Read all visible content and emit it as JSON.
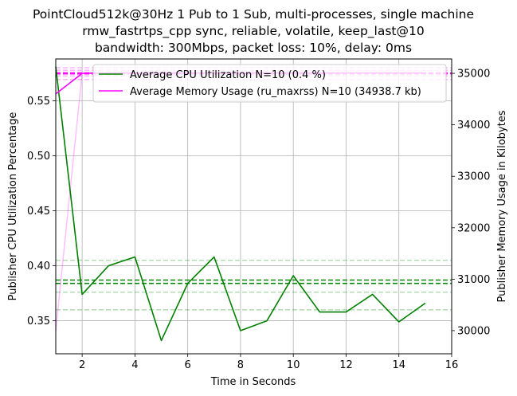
{
  "chart_data": {
    "type": "line",
    "title_lines": [
      "PointCloud512k@30Hz 1 Pub to 1 Sub, multi-processes, single machine",
      "rmw_fastrtps_cpp sync, reliable, volatile, keep_last@10",
      "bandwidth: 300Mbps, packet loss: 10%, delay: 0ms"
    ],
    "xlabel": "Time in Seconds",
    "ylabel_left": "Publisher CPU Utilization Percentage",
    "ylabel_right": "Publisher Memory Usage in Kilobytes",
    "xlim": [
      1,
      16
    ],
    "ylim_left": [
      0.32,
      0.588
    ],
    "ylim_right": [
      29550,
      35280
    ],
    "x_ticks": [
      2,
      4,
      6,
      8,
      10,
      12,
      14,
      16
    ],
    "y_ticks_left": [
      0.35,
      0.4,
      0.45,
      0.5,
      0.55
    ],
    "y_ticks_right": [
      30000,
      31000,
      32000,
      33000,
      34000,
      35000
    ],
    "grid": true,
    "legend_position": "top-right",
    "series": [
      {
        "name": "Average CPU Utilization N=10 (0.4 %)",
        "axis": "left",
        "color": "#008000",
        "x": [
          1,
          2,
          3,
          4,
          5,
          6,
          7,
          8,
          9,
          10,
          11,
          12,
          13,
          14,
          15
        ],
        "y": [
          0.581,
          0.374,
          0.4,
          0.408,
          0.332,
          0.384,
          0.408,
          0.341,
          0.35,
          0.391,
          0.358,
          0.358,
          0.374,
          0.349,
          0.366
        ],
        "ref_lines": [
          0.387,
          0.384
        ],
        "band_lines": [
          0.405,
          0.376,
          0.36
        ]
      },
      {
        "name": "Average Memory Usage (ru_maxrss) N=10 (34938.7 kb)",
        "axis": "right",
        "color": "#ff00ff",
        "x": [
          1,
          2,
          3,
          4,
          5,
          6,
          7,
          8,
          9,
          10,
          11,
          12,
          13,
          14,
          15
        ],
        "y": [
          34600,
          35000,
          35010,
          35010,
          35010,
          35010,
          35010,
          35010,
          35010,
          35010,
          35010,
          35010,
          35010,
          35010,
          35010
        ],
        "ref_lines": [
          35010,
          34990
        ],
        "band_lines": [
          35110,
          35060,
          34950,
          34880
        ]
      }
    ],
    "faint_line": {
      "color": "#ff00ff",
      "x": [
        1,
        2
      ],
      "y_right": [
        30000,
        35010
      ]
    }
  }
}
